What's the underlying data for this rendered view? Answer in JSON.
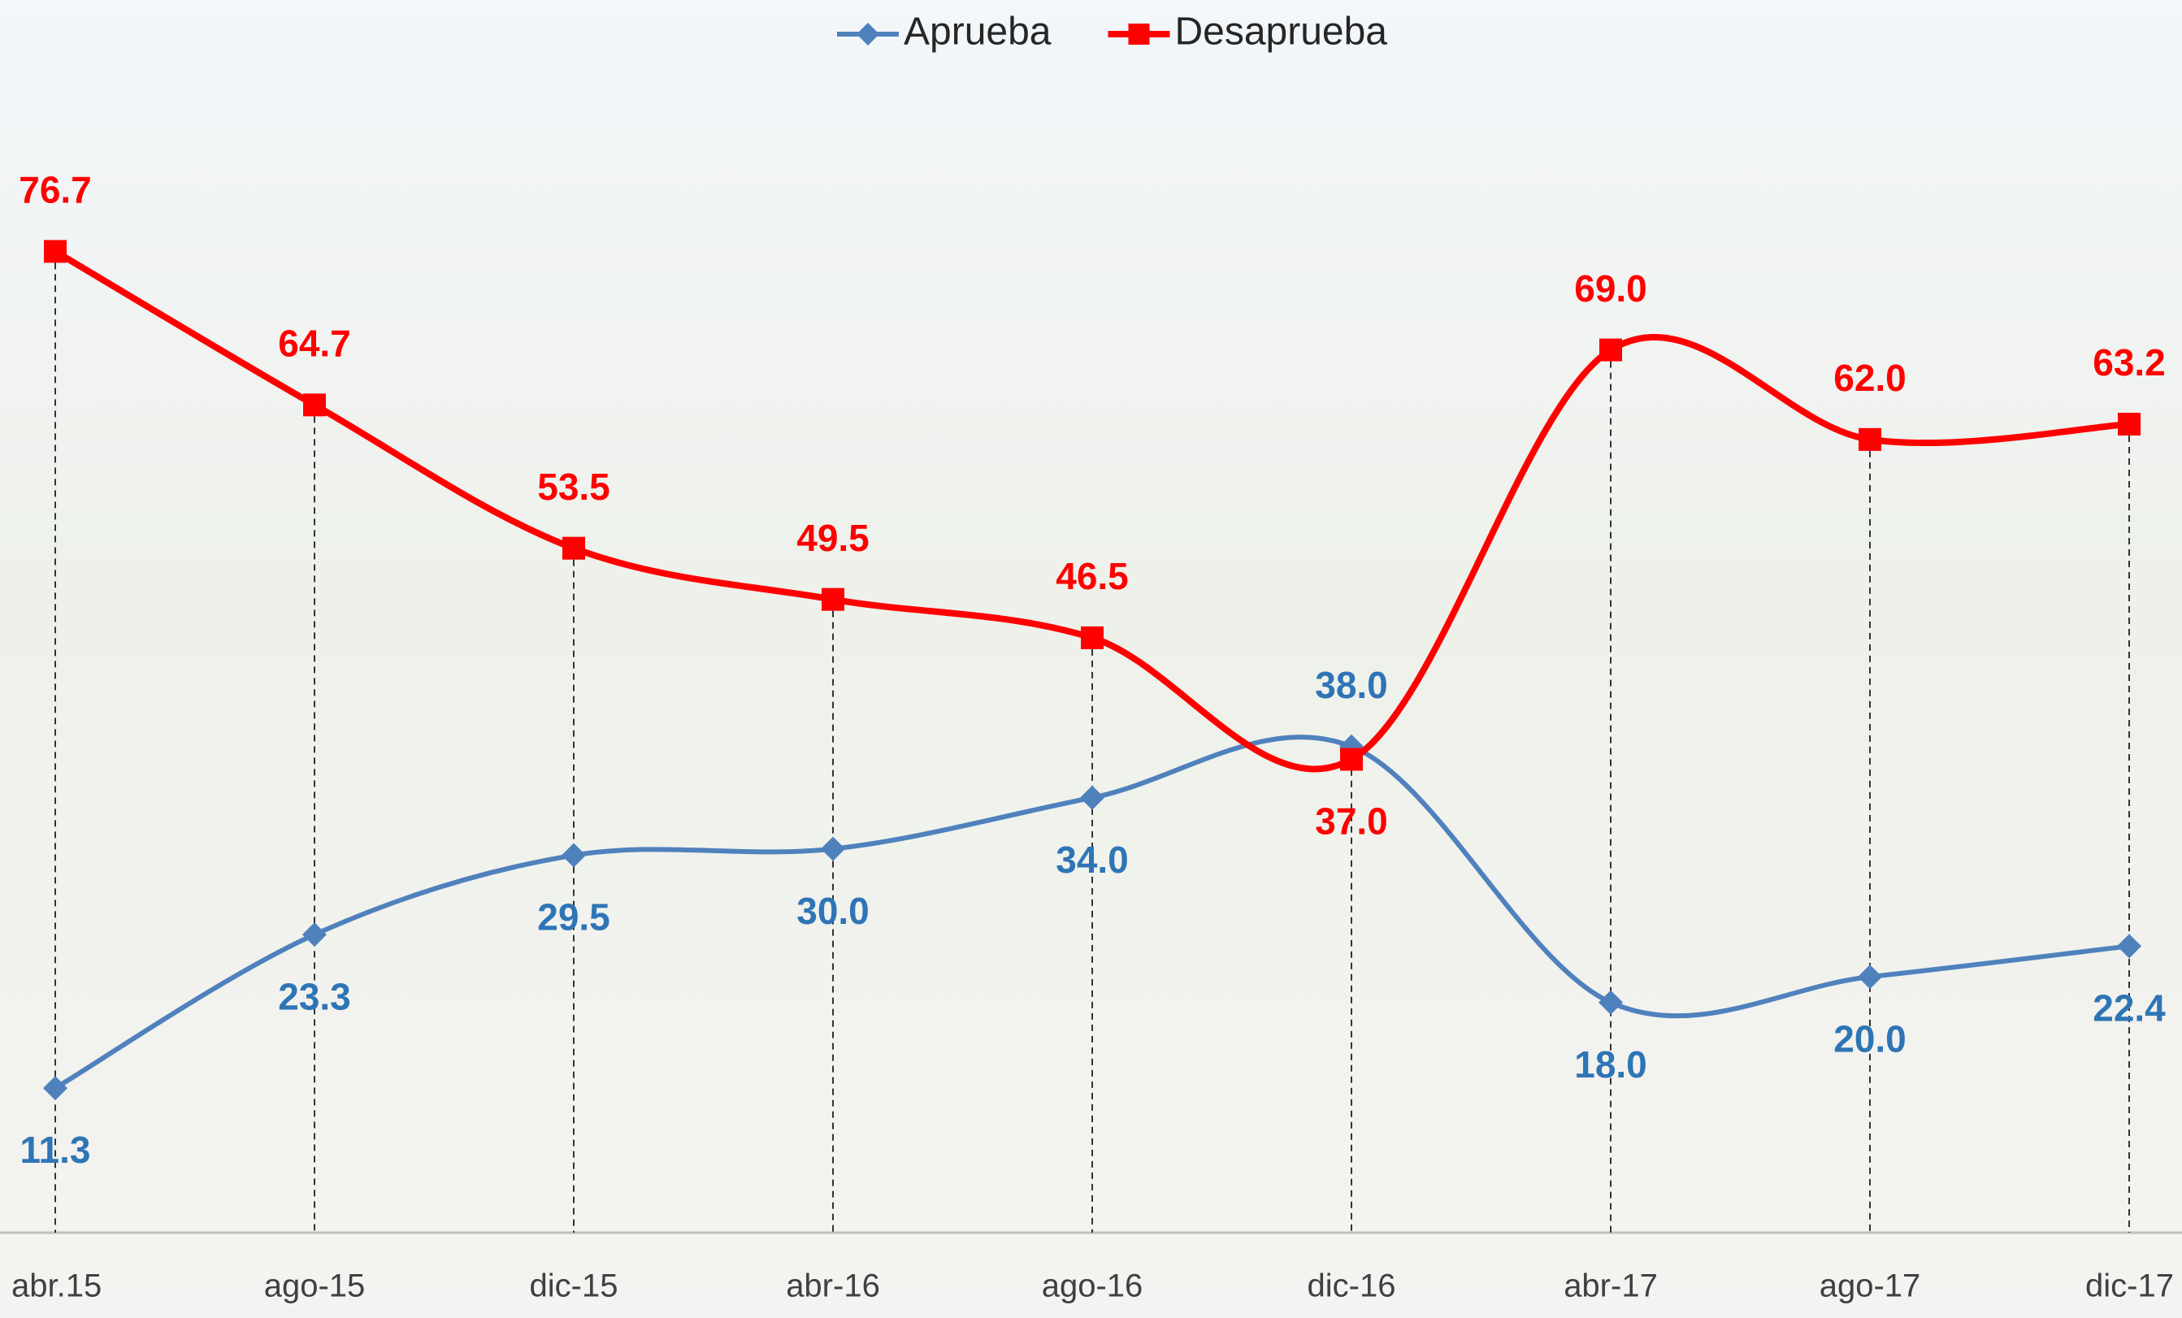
{
  "chart_data": {
    "type": "line",
    "categories": [
      "abr.15",
      "ago-15",
      "dic-15",
      "abr-16",
      "ago-16",
      "dic-16",
      "abr-17",
      "ago-17",
      "dic-17"
    ],
    "series": [
      {
        "name": "Aprueba",
        "color": "#4f81bd",
        "label_color": "#2e75b6",
        "marker": "diamond",
        "values": [
          11.3,
          23.3,
          29.5,
          30.0,
          34.0,
          38.0,
          18.0,
          20.0,
          22.4
        ],
        "value_labels": [
          "11.3",
          "23.3",
          "29.5",
          "30.0",
          "34.0",
          "38.0",
          "18.0",
          "20.0",
          "22.4"
        ]
      },
      {
        "name": "Desaprueba",
        "color": "#ff0000",
        "label_color": "#ff0000",
        "marker": "square",
        "values": [
          76.7,
          64.7,
          53.5,
          49.5,
          46.5,
          37.0,
          69.0,
          62.0,
          63.2
        ],
        "value_labels": [
          "76.7",
          "64.7",
          "53.5",
          "49.5",
          "46.5",
          "37.0",
          "69.0",
          "62.0",
          "63.2"
        ]
      }
    ],
    "ylim": [
      0,
      90
    ],
    "legend": "top",
    "smooth": true,
    "drop_lines": true
  }
}
